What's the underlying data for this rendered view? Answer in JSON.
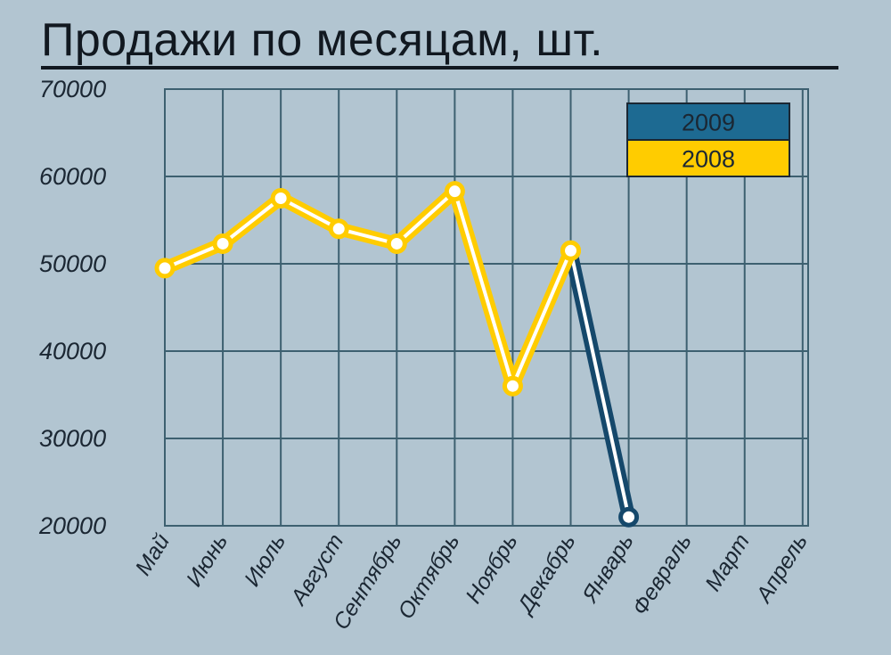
{
  "chart_data": {
    "type": "line",
    "title": "Продажи по месяцам, шт.",
    "xlabel": "",
    "ylabel": "",
    "categories": [
      "Май",
      "Июнь",
      "Июль",
      "Август",
      "Сентябрь",
      "Октябрь",
      "Ноябрь",
      "Декабрь",
      "Январь",
      "Февраль",
      "Март",
      "Апрель"
    ],
    "ylim": [
      20000,
      70000
    ],
    "yticks": [
      "70000",
      "60000",
      "50000",
      "40000",
      "30000",
      "20000"
    ],
    "grid": true,
    "legend_position": "top-right",
    "series": [
      {
        "name": "2009",
        "color": "#1d6a92",
        "line_color": "#15486b",
        "values": [
          null,
          null,
          null,
          null,
          null,
          null,
          null,
          51500,
          21000,
          null,
          null,
          null
        ]
      },
      {
        "name": "2008",
        "color": "#ffcc00",
        "line_color": "#ffcc00",
        "values": [
          49500,
          52300,
          57500,
          54000,
          52300,
          58300,
          36000,
          51500,
          null,
          null,
          null,
          null
        ]
      }
    ]
  }
}
